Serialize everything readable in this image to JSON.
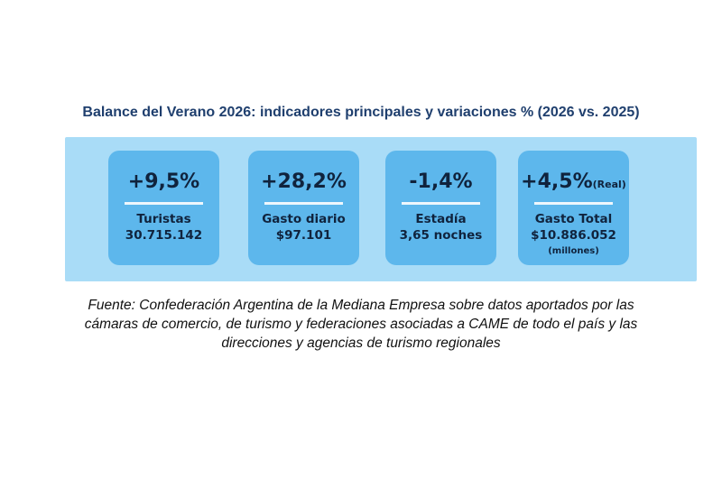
{
  "title": "Balance del Verano 2026: indicadores principales y variaciones % (2026 vs. 2025)",
  "cards": [
    {
      "value": "+9,5%",
      "label": "Turistas",
      "sub": "30.715.142"
    },
    {
      "value": "+28,2%",
      "label": "Gasto diario",
      "sub": "$97.101"
    },
    {
      "value": "-1,4%",
      "label": "Estadía",
      "sub": "3,65 noches"
    },
    {
      "value": "+4,5%",
      "value_suffix": "(Real)",
      "label": "Gasto Total",
      "sub": "$10.886.052",
      "note": "(millones)"
    }
  ],
  "source": {
    "lines": [
      "Fuente: Confederación Argentina de la Mediana Empresa sobre datos aportados por las",
      "cámaras de comercio, de turismo y federaciones asociadas a CAME de todo el país y las",
      "direcciones y agencias de turismo regionales"
    ]
  },
  "colors": {
    "title": "#1f3f6e",
    "panel": "#a9dcf7",
    "card": "#5db7ec",
    "card_text": "#10233d"
  }
}
